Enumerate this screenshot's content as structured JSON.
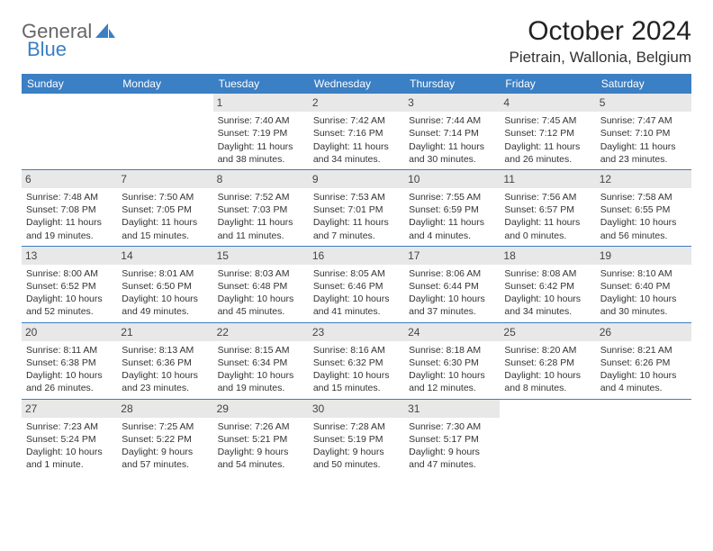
{
  "brand": {
    "part1": "General",
    "part2": "Blue"
  },
  "title": "October 2024",
  "location": "Pietrain, Wallonia, Belgium",
  "colors": {
    "accent": "#3b7fc4",
    "header_bg": "#e8e8e8",
    "text": "#333333",
    "bg": "#ffffff"
  },
  "dayNames": [
    "Sunday",
    "Monday",
    "Tuesday",
    "Wednesday",
    "Thursday",
    "Friday",
    "Saturday"
  ],
  "weeks": [
    [
      null,
      null,
      {
        "n": "1",
        "sr": "7:40 AM",
        "ss": "7:19 PM",
        "dl": "11 hours and 38 minutes."
      },
      {
        "n": "2",
        "sr": "7:42 AM",
        "ss": "7:16 PM",
        "dl": "11 hours and 34 minutes."
      },
      {
        "n": "3",
        "sr": "7:44 AM",
        "ss": "7:14 PM",
        "dl": "11 hours and 30 minutes."
      },
      {
        "n": "4",
        "sr": "7:45 AM",
        "ss": "7:12 PM",
        "dl": "11 hours and 26 minutes."
      },
      {
        "n": "5",
        "sr": "7:47 AM",
        "ss": "7:10 PM",
        "dl": "11 hours and 23 minutes."
      }
    ],
    [
      {
        "n": "6",
        "sr": "7:48 AM",
        "ss": "7:08 PM",
        "dl": "11 hours and 19 minutes."
      },
      {
        "n": "7",
        "sr": "7:50 AM",
        "ss": "7:05 PM",
        "dl": "11 hours and 15 minutes."
      },
      {
        "n": "8",
        "sr": "7:52 AM",
        "ss": "7:03 PM",
        "dl": "11 hours and 11 minutes."
      },
      {
        "n": "9",
        "sr": "7:53 AM",
        "ss": "7:01 PM",
        "dl": "11 hours and 7 minutes."
      },
      {
        "n": "10",
        "sr": "7:55 AM",
        "ss": "6:59 PM",
        "dl": "11 hours and 4 minutes."
      },
      {
        "n": "11",
        "sr": "7:56 AM",
        "ss": "6:57 PM",
        "dl": "11 hours and 0 minutes."
      },
      {
        "n": "12",
        "sr": "7:58 AM",
        "ss": "6:55 PM",
        "dl": "10 hours and 56 minutes."
      }
    ],
    [
      {
        "n": "13",
        "sr": "8:00 AM",
        "ss": "6:52 PM",
        "dl": "10 hours and 52 minutes."
      },
      {
        "n": "14",
        "sr": "8:01 AM",
        "ss": "6:50 PM",
        "dl": "10 hours and 49 minutes."
      },
      {
        "n": "15",
        "sr": "8:03 AM",
        "ss": "6:48 PM",
        "dl": "10 hours and 45 minutes."
      },
      {
        "n": "16",
        "sr": "8:05 AM",
        "ss": "6:46 PM",
        "dl": "10 hours and 41 minutes."
      },
      {
        "n": "17",
        "sr": "8:06 AM",
        "ss": "6:44 PM",
        "dl": "10 hours and 37 minutes."
      },
      {
        "n": "18",
        "sr": "8:08 AM",
        "ss": "6:42 PM",
        "dl": "10 hours and 34 minutes."
      },
      {
        "n": "19",
        "sr": "8:10 AM",
        "ss": "6:40 PM",
        "dl": "10 hours and 30 minutes."
      }
    ],
    [
      {
        "n": "20",
        "sr": "8:11 AM",
        "ss": "6:38 PM",
        "dl": "10 hours and 26 minutes."
      },
      {
        "n": "21",
        "sr": "8:13 AM",
        "ss": "6:36 PM",
        "dl": "10 hours and 23 minutes."
      },
      {
        "n": "22",
        "sr": "8:15 AM",
        "ss": "6:34 PM",
        "dl": "10 hours and 19 minutes."
      },
      {
        "n": "23",
        "sr": "8:16 AM",
        "ss": "6:32 PM",
        "dl": "10 hours and 15 minutes."
      },
      {
        "n": "24",
        "sr": "8:18 AM",
        "ss": "6:30 PM",
        "dl": "10 hours and 12 minutes."
      },
      {
        "n": "25",
        "sr": "8:20 AM",
        "ss": "6:28 PM",
        "dl": "10 hours and 8 minutes."
      },
      {
        "n": "26",
        "sr": "8:21 AM",
        "ss": "6:26 PM",
        "dl": "10 hours and 4 minutes."
      }
    ],
    [
      {
        "n": "27",
        "sr": "7:23 AM",
        "ss": "5:24 PM",
        "dl": "10 hours and 1 minute."
      },
      {
        "n": "28",
        "sr": "7:25 AM",
        "ss": "5:22 PM",
        "dl": "9 hours and 57 minutes."
      },
      {
        "n": "29",
        "sr": "7:26 AM",
        "ss": "5:21 PM",
        "dl": "9 hours and 54 minutes."
      },
      {
        "n": "30",
        "sr": "7:28 AM",
        "ss": "5:19 PM",
        "dl": "9 hours and 50 minutes."
      },
      {
        "n": "31",
        "sr": "7:30 AM",
        "ss": "5:17 PM",
        "dl": "9 hours and 47 minutes."
      },
      null,
      null
    ]
  ],
  "labels": {
    "sunrise": "Sunrise: ",
    "sunset": "Sunset: ",
    "daylight": "Daylight: "
  }
}
